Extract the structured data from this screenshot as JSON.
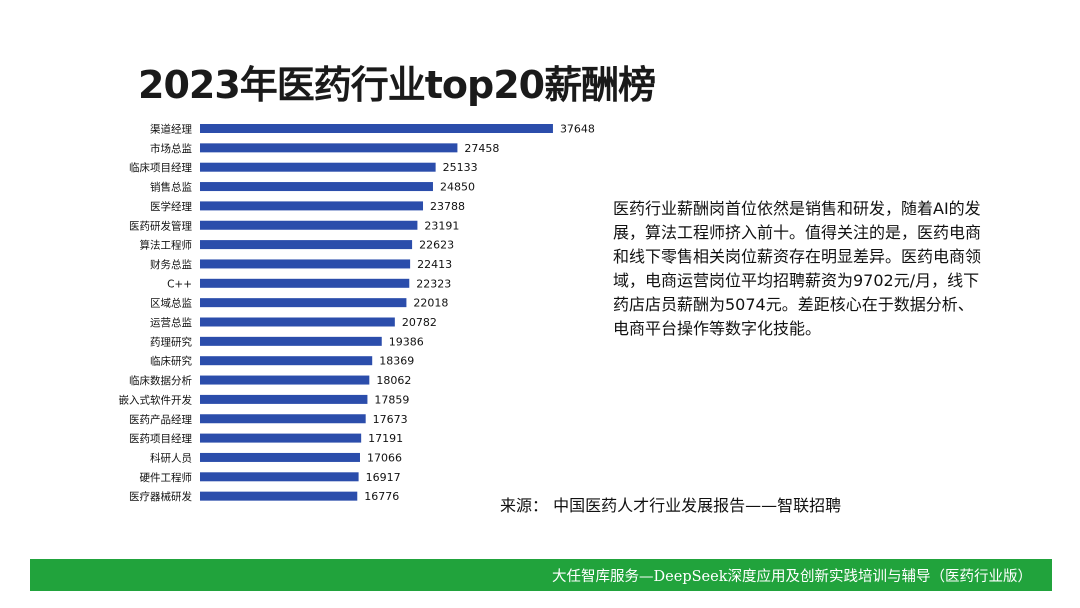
{
  "chart_data": {
    "type": "bar",
    "orientation": "horizontal",
    "title": "2023年医药行业top20薪酬榜",
    "categories": [
      "渠道经理",
      "市场总监",
      "临床项目经理",
      "销售总监",
      "医学经理",
      "医药研发管理",
      "算法工程师",
      "财务总监",
      "C++",
      "区域总监",
      "运营总监",
      "药理研究",
      "临床研究",
      "临床数据分析",
      "嵌入式软件开发",
      "医药产品经理",
      "医药项目经理",
      "科研人员",
      "硬件工程师",
      "医疗器械研发"
    ],
    "values": [
      37648,
      27458,
      25133,
      24850,
      23788,
      23191,
      22623,
      22413,
      22323,
      22018,
      20782,
      19386,
      18369,
      18062,
      17859,
      17673,
      17191,
      17066,
      16917,
      16776
    ],
    "xlabel": "",
    "ylabel": "",
    "xlim": [
      0,
      40000
    ],
    "bar_color": "#2b4dab",
    "grid": false,
    "legend": "none"
  },
  "description": "医药行业薪酬岗首位依然是销售和研发，随着AI的发展，算法工程师挤入前十。值得关注的是，医药电商和线下零售相关岗位薪资存在明显差异。医药电商领域，电商运营岗位平均招聘薪资为9702元/月，线下药店店员薪酬为5074元。差距核心在于数据分析、电商平台操作等数字化技能。",
  "source": "来源：  中国医药人才行业发展报告——智联招聘",
  "footer": {
    "text": "大任智库服务—DeepSeek深度应用及创新实践培训与辅导（医药行业版）",
    "color": "#21a33c"
  }
}
